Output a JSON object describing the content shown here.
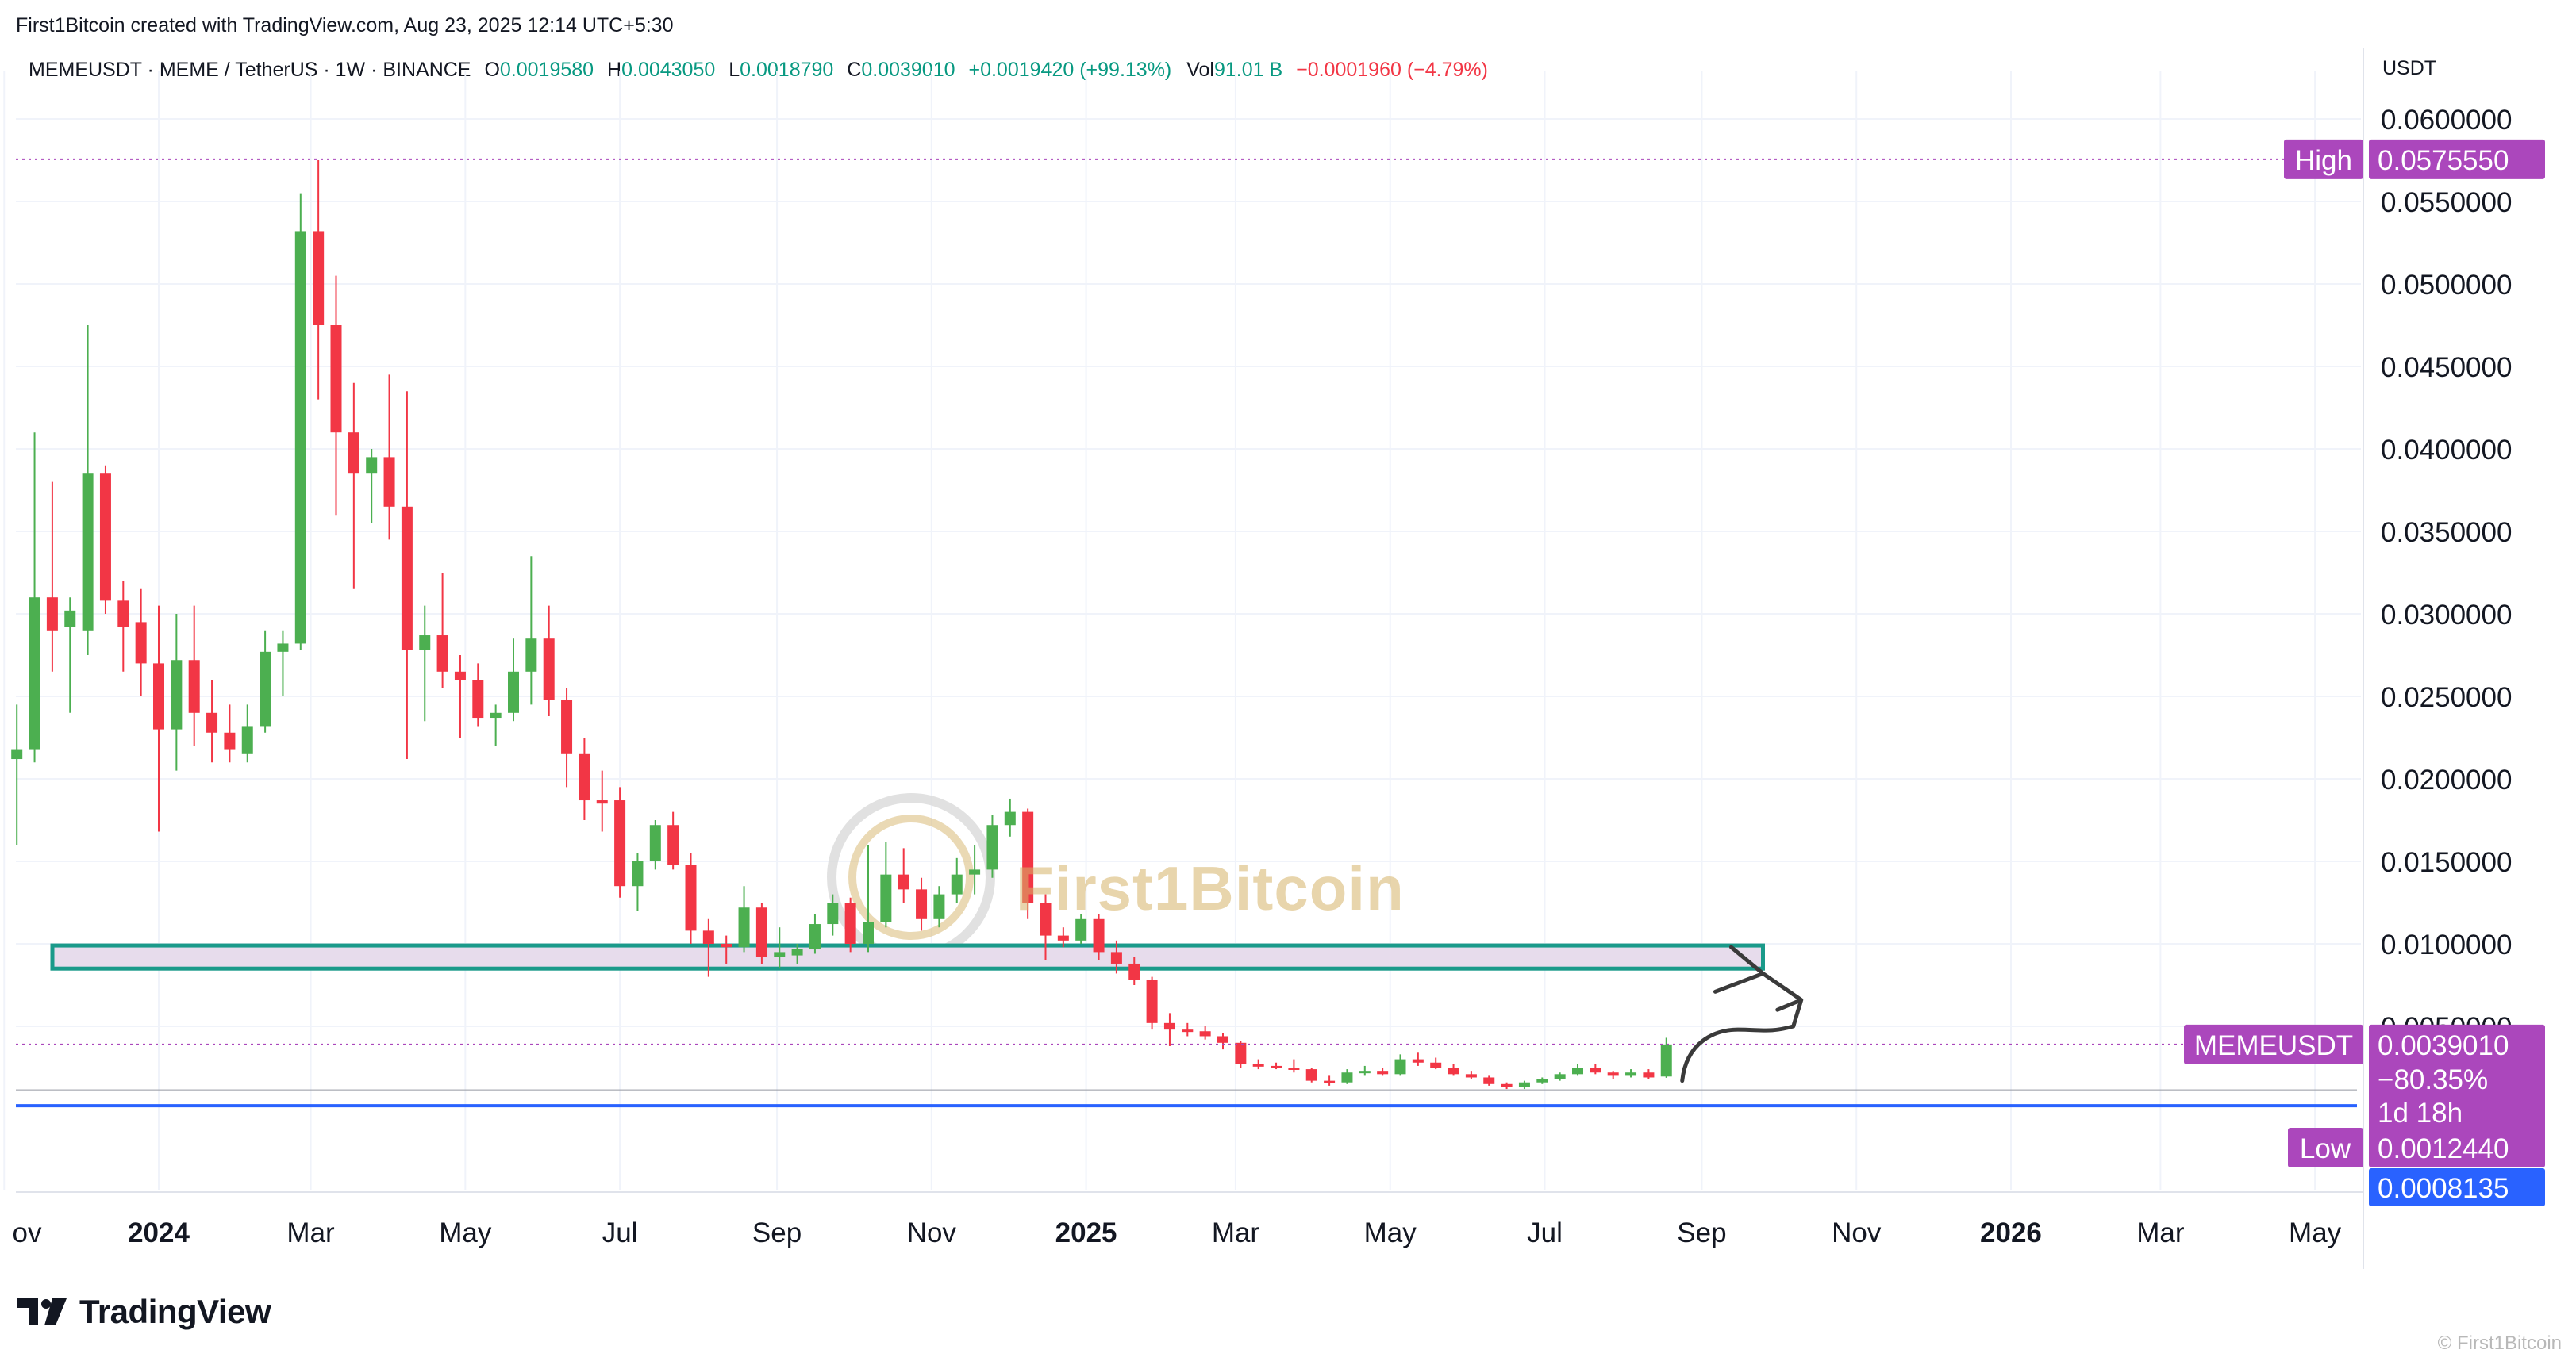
{
  "header": {
    "credit": "First1Bitcoin created with TradingView.com, Aug 23, 2025 12:14 UTC+5:30",
    "symbol": "MEMEUSDT · MEME / TetherUS · 1W · BINANCE",
    "o_label": "O",
    "o_value": "0.0019580",
    "h_label": "H",
    "h_value": "0.0043050",
    "l_label": "L",
    "l_value": "0.0018790",
    "c_label": "C",
    "c_value": "0.0039010",
    "change": "+0.0019420 (+99.13%)",
    "vol_label": "Vol",
    "vol_value": "91.01 B",
    "vol_change": "−0.0001960 (−4.79%)"
  },
  "colors": {
    "up": "#4caf50",
    "down": "#f23645",
    "marker": "#ab47bc",
    "blue": "#2962ff",
    "zone_fill": "#e7dcec",
    "zone_border": "#1a9a8a"
  },
  "watermark": {
    "text": "First1Bitcoin",
    "corner": "© First1Bitcoin"
  },
  "branding": {
    "text": "TradingView",
    "icon": "tradingview-logo-icon"
  },
  "chart_data": {
    "type": "candlestick",
    "unit": "USDT",
    "interval": "1W",
    "ylim": [
      -0.003,
      0.062
    ],
    "y_ticks": [
      "0.0600000",
      "0.0550000",
      "0.0500000",
      "0.0450000",
      "0.0400000",
      "0.0350000",
      "0.0300000",
      "0.0250000",
      "0.0200000",
      "0.0150000",
      "0.0100000",
      "0.0050000"
    ],
    "x_ticks": [
      "ov",
      "2024",
      "Mar",
      "May",
      "Jul",
      "Sep",
      "Nov",
      "2025",
      "Mar",
      "May",
      "Jul",
      "Sep",
      "Nov",
      "2026",
      "Mar",
      "May"
    ],
    "grid": true,
    "markers": [
      {
        "label": "High",
        "value": "0.0575550",
        "price": 0.057555
      },
      {
        "label": "MEMEUSDT",
        "value": "0.0039010",
        "sub1": "−80.35%",
        "sub2": "1d 18h",
        "price": 0.003901
      },
      {
        "label": "Low",
        "value": "0.0012440",
        "price": 0.001244
      },
      {
        "label": "",
        "value": "0.0008135",
        "price": 0.0008135
      }
    ],
    "zone": {
      "from": "2023-11-06",
      "to": "2025-09-22",
      "low": 0.0085,
      "high": 0.0099
    },
    "arrow_target": "2025-09-22",
    "candles": [
      {
        "t": "2023-11-06",
        "o": 0.0212,
        "h": 0.0245,
        "l": 0.016,
        "c": 0.0218
      },
      {
        "t": "2023-11-13",
        "o": 0.0218,
        "h": 0.041,
        "l": 0.021,
        "c": 0.031
      },
      {
        "t": "2023-11-20",
        "o": 0.031,
        "h": 0.038,
        "l": 0.0265,
        "c": 0.029
      },
      {
        "t": "2023-11-27",
        "o": 0.0292,
        "h": 0.031,
        "l": 0.024,
        "c": 0.0302
      },
      {
        "t": "2023-12-04",
        "o": 0.029,
        "h": 0.0475,
        "l": 0.0275,
        "c": 0.0385
      },
      {
        "t": "2023-12-11",
        "o": 0.0385,
        "h": 0.039,
        "l": 0.03,
        "c": 0.0308
      },
      {
        "t": "2023-12-18",
        "o": 0.0308,
        "h": 0.032,
        "l": 0.0265,
        "c": 0.0292
      },
      {
        "t": "2023-12-25",
        "o": 0.0295,
        "h": 0.0315,
        "l": 0.025,
        "c": 0.027
      },
      {
        "t": "2024-01-01",
        "o": 0.027,
        "h": 0.0305,
        "l": 0.0168,
        "c": 0.023
      },
      {
        "t": "2024-01-08",
        "o": 0.023,
        "h": 0.03,
        "l": 0.0205,
        "c": 0.0272
      },
      {
        "t": "2024-01-15",
        "o": 0.0272,
        "h": 0.0305,
        "l": 0.022,
        "c": 0.024
      },
      {
        "t": "2024-01-22",
        "o": 0.024,
        "h": 0.026,
        "l": 0.021,
        "c": 0.0228
      },
      {
        "t": "2024-01-29",
        "o": 0.0228,
        "h": 0.0245,
        "l": 0.021,
        "c": 0.0218
      },
      {
        "t": "2024-02-05",
        "o": 0.0215,
        "h": 0.0245,
        "l": 0.021,
        "c": 0.0232
      },
      {
        "t": "2024-02-12",
        "o": 0.0232,
        "h": 0.029,
        "l": 0.0228,
        "c": 0.0277
      },
      {
        "t": "2024-02-19",
        "o": 0.0277,
        "h": 0.029,
        "l": 0.025,
        "c": 0.0282
      },
      {
        "t": "2024-02-26",
        "o": 0.0282,
        "h": 0.0555,
        "l": 0.0278,
        "c": 0.0532
      },
      {
        "t": "2024-03-04",
        "o": 0.0532,
        "h": 0.0575,
        "l": 0.043,
        "c": 0.0475
      },
      {
        "t": "2024-03-11",
        "o": 0.0475,
        "h": 0.0505,
        "l": 0.036,
        "c": 0.041
      },
      {
        "t": "2024-03-18",
        "o": 0.041,
        "h": 0.044,
        "l": 0.0315,
        "c": 0.0385
      },
      {
        "t": "2024-03-25",
        "o": 0.0385,
        "h": 0.04,
        "l": 0.0355,
        "c": 0.0395
      },
      {
        "t": "2024-04-01",
        "o": 0.0395,
        "h": 0.0445,
        "l": 0.0345,
        "c": 0.0365
      },
      {
        "t": "2024-04-08",
        "o": 0.0365,
        "h": 0.0435,
        "l": 0.0212,
        "c": 0.0278
      },
      {
        "t": "2024-04-15",
        "o": 0.0278,
        "h": 0.0305,
        "l": 0.0235,
        "c": 0.0287
      },
      {
        "t": "2024-04-22",
        "o": 0.0287,
        "h": 0.0325,
        "l": 0.0255,
        "c": 0.0265
      },
      {
        "t": "2024-04-29",
        "o": 0.0265,
        "h": 0.0275,
        "l": 0.0225,
        "c": 0.026
      },
      {
        "t": "2024-05-06",
        "o": 0.026,
        "h": 0.027,
        "l": 0.0232,
        "c": 0.0237
      },
      {
        "t": "2024-05-13",
        "o": 0.0237,
        "h": 0.0245,
        "l": 0.022,
        "c": 0.024
      },
      {
        "t": "2024-05-20",
        "o": 0.024,
        "h": 0.0285,
        "l": 0.0235,
        "c": 0.0265
      },
      {
        "t": "2024-05-27",
        "o": 0.0265,
        "h": 0.0335,
        "l": 0.0245,
        "c": 0.0285
      },
      {
        "t": "2024-06-03",
        "o": 0.0285,
        "h": 0.0305,
        "l": 0.0238,
        "c": 0.0248
      },
      {
        "t": "2024-06-10",
        "o": 0.0248,
        "h": 0.0255,
        "l": 0.0195,
        "c": 0.0215
      },
      {
        "t": "2024-06-17",
        "o": 0.0215,
        "h": 0.0225,
        "l": 0.0175,
        "c": 0.0187
      },
      {
        "t": "2024-06-24",
        "o": 0.0187,
        "h": 0.0205,
        "l": 0.0168,
        "c": 0.0185
      },
      {
        "t": "2024-07-01",
        "o": 0.0187,
        "h": 0.0195,
        "l": 0.0128,
        "c": 0.0135
      },
      {
        "t": "2024-07-08",
        "o": 0.0135,
        "h": 0.0155,
        "l": 0.012,
        "c": 0.015
      },
      {
        "t": "2024-07-15",
        "o": 0.015,
        "h": 0.0175,
        "l": 0.0145,
        "c": 0.0172
      },
      {
        "t": "2024-07-22",
        "o": 0.0172,
        "h": 0.018,
        "l": 0.0145,
        "c": 0.0148
      },
      {
        "t": "2024-07-29",
        "o": 0.0148,
        "h": 0.0155,
        "l": 0.01,
        "c": 0.0108
      },
      {
        "t": "2024-08-05",
        "o": 0.0108,
        "h": 0.0115,
        "l": 0.008,
        "c": 0.01
      },
      {
        "t": "2024-08-12",
        "o": 0.01,
        "h": 0.0105,
        "l": 0.0088,
        "c": 0.0098
      },
      {
        "t": "2024-08-19",
        "o": 0.0098,
        "h": 0.0135,
        "l": 0.0095,
        "c": 0.0122
      },
      {
        "t": "2024-08-26",
        "o": 0.0122,
        "h": 0.0125,
        "l": 0.0088,
        "c": 0.0092
      },
      {
        "t": "2024-09-02",
        "o": 0.0092,
        "h": 0.011,
        "l": 0.0085,
        "c": 0.0095
      },
      {
        "t": "2024-09-09",
        "o": 0.0093,
        "h": 0.01,
        "l": 0.0088,
        "c": 0.0097
      },
      {
        "t": "2024-09-16",
        "o": 0.0097,
        "h": 0.0118,
        "l": 0.0094,
        "c": 0.0112
      },
      {
        "t": "2024-09-23",
        "o": 0.0112,
        "h": 0.013,
        "l": 0.0105,
        "c": 0.0125
      },
      {
        "t": "2024-09-30",
        "o": 0.0125,
        "h": 0.0128,
        "l": 0.0095,
        "c": 0.01
      },
      {
        "t": "2024-10-07",
        "o": 0.01,
        "h": 0.016,
        "l": 0.0095,
        "c": 0.0113
      },
      {
        "t": "2024-10-14",
        "o": 0.0113,
        "h": 0.0162,
        "l": 0.011,
        "c": 0.0142
      },
      {
        "t": "2024-10-21",
        "o": 0.0142,
        "h": 0.0158,
        "l": 0.0125,
        "c": 0.0133
      },
      {
        "t": "2024-10-28",
        "o": 0.0133,
        "h": 0.014,
        "l": 0.0108,
        "c": 0.0115
      },
      {
        "t": "2024-11-04",
        "o": 0.0115,
        "h": 0.0135,
        "l": 0.011,
        "c": 0.013
      },
      {
        "t": "2024-11-11",
        "o": 0.013,
        "h": 0.0152,
        "l": 0.0125,
        "c": 0.0142
      },
      {
        "t": "2024-11-18",
        "o": 0.0142,
        "h": 0.016,
        "l": 0.013,
        "c": 0.0145
      },
      {
        "t": "2024-11-25",
        "o": 0.0145,
        "h": 0.0178,
        "l": 0.014,
        "c": 0.0172
      },
      {
        "t": "2024-12-02",
        "o": 0.0172,
        "h": 0.0188,
        "l": 0.0165,
        "c": 0.018
      },
      {
        "t": "2024-12-09",
        "o": 0.018,
        "h": 0.0182,
        "l": 0.0115,
        "c": 0.0125
      },
      {
        "t": "2024-12-16",
        "o": 0.0125,
        "h": 0.013,
        "l": 0.009,
        "c": 0.0105
      },
      {
        "t": "2024-12-23",
        "o": 0.0105,
        "h": 0.011,
        "l": 0.0098,
        "c": 0.0102
      },
      {
        "t": "2024-12-30",
        "o": 0.0102,
        "h": 0.0118,
        "l": 0.01,
        "c": 0.0115
      },
      {
        "t": "2025-01-06",
        "o": 0.0115,
        "h": 0.0118,
        "l": 0.009,
        "c": 0.0095
      },
      {
        "t": "2025-01-13",
        "o": 0.0095,
        "h": 0.0102,
        "l": 0.0082,
        "c": 0.0088
      },
      {
        "t": "2025-01-20",
        "o": 0.0088,
        "h": 0.0092,
        "l": 0.0075,
        "c": 0.0078
      },
      {
        "t": "2025-01-27",
        "o": 0.0078,
        "h": 0.008,
        "l": 0.0048,
        "c": 0.0052
      },
      {
        "t": "2025-02-03",
        "o": 0.0052,
        "h": 0.0058,
        "l": 0.0038,
        "c": 0.0048
      },
      {
        "t": "2025-02-10",
        "o": 0.0048,
        "h": 0.0052,
        "l": 0.0044,
        "c": 0.0047
      },
      {
        "t": "2025-02-17",
        "o": 0.0047,
        "h": 0.005,
        "l": 0.0042,
        "c": 0.0044
      },
      {
        "t": "2025-02-24",
        "o": 0.0044,
        "h": 0.0046,
        "l": 0.0036,
        "c": 0.004
      },
      {
        "t": "2025-03-03",
        "o": 0.004,
        "h": 0.0041,
        "l": 0.0025,
        "c": 0.0027
      },
      {
        "t": "2025-03-10",
        "o": 0.0027,
        "h": 0.003,
        "l": 0.0024,
        "c": 0.0026
      },
      {
        "t": "2025-03-17",
        "o": 0.0026,
        "h": 0.0028,
        "l": 0.0024,
        "c": 0.0025
      },
      {
        "t": "2025-03-24",
        "o": 0.0025,
        "h": 0.003,
        "l": 0.0022,
        "c": 0.0024
      },
      {
        "t": "2025-03-31",
        "o": 0.0024,
        "h": 0.0025,
        "l": 0.0016,
        "c": 0.0017
      },
      {
        "t": "2025-04-07",
        "o": 0.0017,
        "h": 0.002,
        "l": 0.0014,
        "c": 0.0016
      },
      {
        "t": "2025-04-14",
        "o": 0.0016,
        "h": 0.0024,
        "l": 0.0015,
        "c": 0.0022
      },
      {
        "t": "2025-04-21",
        "o": 0.0022,
        "h": 0.0026,
        "l": 0.002,
        "c": 0.0023
      },
      {
        "t": "2025-04-28",
        "o": 0.0023,
        "h": 0.0025,
        "l": 0.002,
        "c": 0.0021
      },
      {
        "t": "2025-05-05",
        "o": 0.0021,
        "h": 0.0033,
        "l": 0.002,
        "c": 0.003
      },
      {
        "t": "2025-05-12",
        "o": 0.003,
        "h": 0.0034,
        "l": 0.0026,
        "c": 0.0028
      },
      {
        "t": "2025-05-19",
        "o": 0.0028,
        "h": 0.0031,
        "l": 0.0024,
        "c": 0.0025
      },
      {
        "t": "2025-05-26",
        "o": 0.0025,
        "h": 0.0027,
        "l": 0.002,
        "c": 0.0021
      },
      {
        "t": "2025-06-02",
        "o": 0.0021,
        "h": 0.0023,
        "l": 0.0018,
        "c": 0.0019
      },
      {
        "t": "2025-06-09",
        "o": 0.0019,
        "h": 0.002,
        "l": 0.0014,
        "c": 0.0015
      },
      {
        "t": "2025-06-16",
        "o": 0.0015,
        "h": 0.0016,
        "l": 0.0012,
        "c": 0.0013
      },
      {
        "t": "2025-06-23",
        "o": 0.0013,
        "h": 0.0017,
        "l": 0.0012,
        "c": 0.0016
      },
      {
        "t": "2025-06-30",
        "o": 0.0016,
        "h": 0.0019,
        "l": 0.0015,
        "c": 0.0018
      },
      {
        "t": "2025-07-07",
        "o": 0.0018,
        "h": 0.0022,
        "l": 0.0017,
        "c": 0.0021
      },
      {
        "t": "2025-07-14",
        "o": 0.0021,
        "h": 0.0027,
        "l": 0.002,
        "c": 0.0025
      },
      {
        "t": "2025-07-21",
        "o": 0.0025,
        "h": 0.0027,
        "l": 0.0021,
        "c": 0.0022
      },
      {
        "t": "2025-07-28",
        "o": 0.0022,
        "h": 0.0023,
        "l": 0.0018,
        "c": 0.002
      },
      {
        "t": "2025-08-04",
        "o": 0.002,
        "h": 0.0024,
        "l": 0.0019,
        "c": 0.0022
      },
      {
        "t": "2025-08-11",
        "o": 0.0022,
        "h": 0.0024,
        "l": 0.0018,
        "c": 0.0019
      },
      {
        "t": "2025-08-18",
        "o": 0.001958,
        "h": 0.004305,
        "l": 0.001879,
        "c": 0.003901
      }
    ]
  }
}
